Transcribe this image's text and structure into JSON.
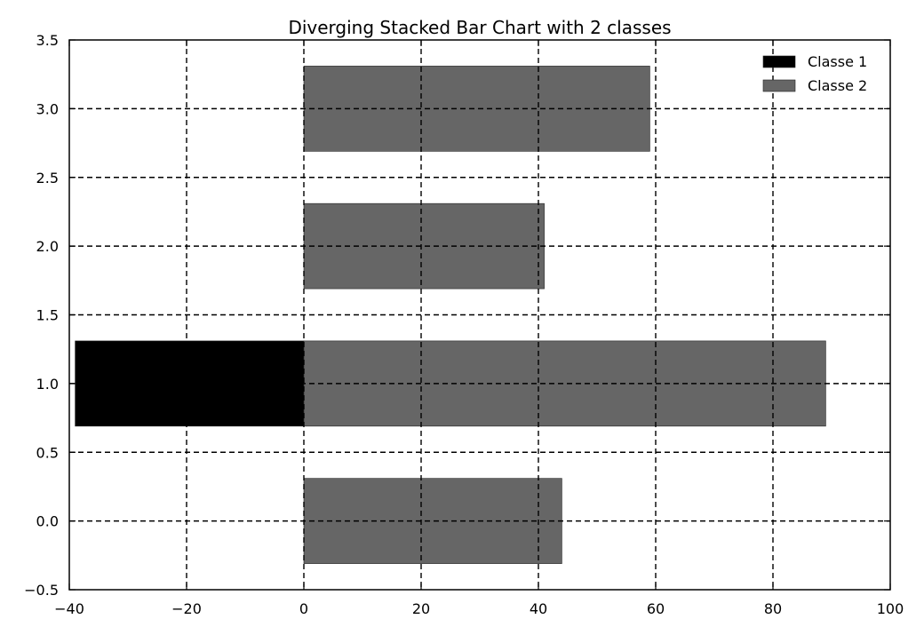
{
  "chart_data": {
    "type": "bar",
    "orientation": "horizontal",
    "title": "Diverging Stacked Bar Chart with 2 classes",
    "xlabel": "",
    "ylabel": "",
    "xlim": [
      -40,
      100
    ],
    "ylim": [
      -0.5,
      3.5
    ],
    "xticks": [
      -40,
      -20,
      0,
      20,
      40,
      60,
      80,
      100
    ],
    "xtick_labels": [
      "−40",
      "−20",
      "0",
      "20",
      "40",
      "60",
      "80",
      "100"
    ],
    "yticks": [
      -0.5,
      0.0,
      0.5,
      1.0,
      1.5,
      2.0,
      2.5,
      3.0,
      3.5
    ],
    "ytick_labels": [
      "−0.5",
      "0.0",
      "0.5",
      "1.0",
      "1.5",
      "2.0",
      "2.5",
      "3.0",
      "3.5"
    ],
    "grid": true,
    "grid_style": "dashed",
    "legend_position": "top-right",
    "bar_height": 0.62,
    "categories": [
      0,
      1,
      2,
      3
    ],
    "series": [
      {
        "name": "Classe 1",
        "color": "#000000",
        "values": [
          0,
          -39,
          0,
          0
        ]
      },
      {
        "name": "Classe 2",
        "color": "#666666",
        "values": [
          44,
          89,
          41,
          59
        ]
      }
    ]
  }
}
